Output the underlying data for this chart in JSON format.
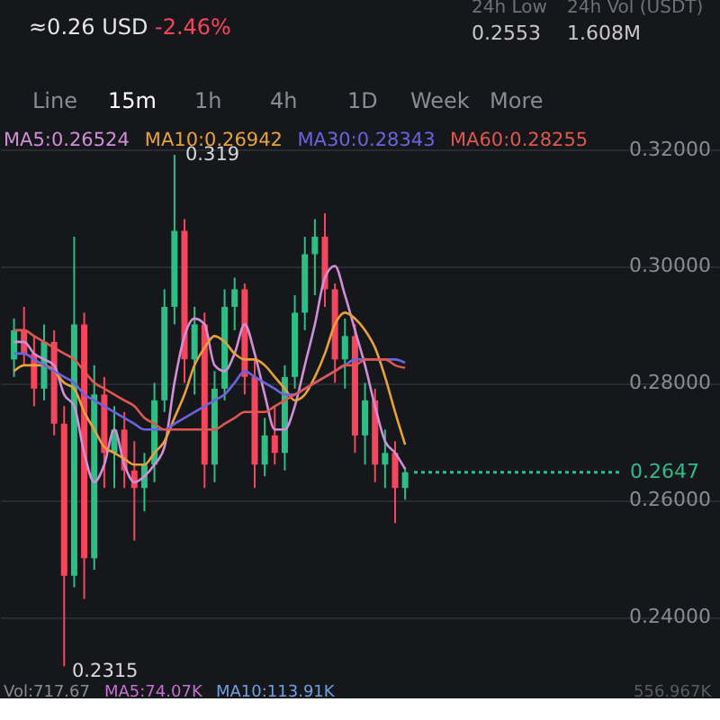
{
  "chart_data": {
    "type": "candlestick",
    "categories": [
      null,
      null,
      null,
      null,
      null,
      null,
      null,
      null,
      null,
      null,
      null,
      null,
      null,
      null,
      null,
      null,
      null,
      null,
      null,
      null,
      null,
      null,
      null,
      null,
      null,
      null,
      null,
      null,
      null,
      null,
      null,
      null,
      null,
      null,
      null,
      null,
      null,
      null,
      null,
      null,
      null,
      null,
      null,
      null,
      null,
      null,
      null,
      null,
      null,
      null,
      null,
      null,
      null,
      null,
      null,
      null,
      null,
      null,
      null,
      null,
      null,
      null,
      null,
      null,
      null,
      null,
      null,
      null,
      null,
      null
    ],
    "ohlc": [
      [
        0.284,
        0.291,
        0.281,
        0.289
      ],
      [
        0.289,
        0.293,
        0.283,
        0.285
      ],
      [
        0.285,
        0.288,
        0.276,
        0.279
      ],
      [
        0.279,
        0.29,
        0.277,
        0.287
      ],
      [
        0.287,
        0.289,
        0.271,
        0.273
      ],
      [
        0.273,
        0.276,
        0.2315,
        0.247
      ],
      [
        0.247,
        0.305,
        0.245,
        0.29
      ],
      [
        0.29,
        0.292,
        0.243,
        0.25
      ],
      [
        0.25,
        0.283,
        0.248,
        0.278
      ],
      [
        0.278,
        0.281,
        0.262,
        0.268
      ],
      [
        0.268,
        0.276,
        0.262,
        0.272
      ],
      [
        0.272,
        0.275,
        0.262,
        0.265
      ],
      [
        0.265,
        0.27,
        0.253,
        0.262
      ],
      [
        0.262,
        0.268,
        0.258,
        0.266
      ],
      [
        0.266,
        0.28,
        0.263,
        0.277
      ],
      [
        0.277,
        0.296,
        0.275,
        0.293
      ],
      [
        0.293,
        0.319,
        0.29,
        0.306
      ],
      [
        0.306,
        0.308,
        0.28,
        0.284
      ],
      [
        0.284,
        0.293,
        0.278,
        0.29
      ],
      [
        0.29,
        0.292,
        0.262,
        0.266
      ],
      [
        0.266,
        0.282,
        0.263,
        0.279
      ],
      [
        0.279,
        0.296,
        0.277,
        0.293
      ],
      [
        0.293,
        0.298,
        0.289,
        0.296
      ],
      [
        0.296,
        0.297,
        0.278,
        0.281
      ],
      [
        0.281,
        0.284,
        0.262,
        0.266
      ],
      [
        0.266,
        0.274,
        0.264,
        0.271
      ],
      [
        0.271,
        0.276,
        0.266,
        0.268
      ],
      [
        0.268,
        0.283,
        0.265,
        0.281
      ],
      [
        0.281,
        0.295,
        0.279,
        0.292
      ],
      [
        0.292,
        0.305,
        0.289,
        0.302
      ],
      [
        0.302,
        0.308,
        0.295,
        0.305
      ],
      [
        0.305,
        0.309,
        0.293,
        0.296
      ],
      [
        0.296,
        0.297,
        0.28,
        0.284
      ],
      [
        0.284,
        0.291,
        0.279,
        0.288
      ],
      [
        0.288,
        0.29,
        0.268,
        0.271
      ],
      [
        0.271,
        0.28,
        0.266,
        0.277
      ],
      [
        0.277,
        0.279,
        0.263,
        0.266
      ],
      [
        0.266,
        0.272,
        0.262,
        0.268
      ],
      [
        0.268,
        0.27,
        0.256,
        0.262
      ],
      [
        0.262,
        0.2655,
        0.26,
        0.2647
      ],
      null,
      null,
      null,
      null,
      null,
      null,
      null,
      null,
      null,
      null,
      null,
      null,
      null,
      null,
      null,
      null,
      null,
      null,
      null,
      null,
      null,
      null,
      null,
      null,
      null,
      null,
      null,
      null,
      null,
      null
    ],
    "series": [
      {
        "name": "MA5:0.26524",
        "type": "line",
        "color": "#d08fd8",
        "values": [
          0.287,
          0.287,
          0.285,
          0.284,
          0.283,
          0.278,
          0.276,
          0.268,
          0.263,
          0.266,
          0.272,
          0.266,
          0.263,
          0.264,
          0.266,
          0.269,
          0.28,
          0.288,
          0.291,
          0.29,
          0.283,
          0.282,
          0.285,
          0.29,
          0.285,
          0.278,
          0.272,
          0.272,
          0.276,
          0.283,
          0.29,
          0.298,
          0.3,
          0.295,
          0.289,
          0.283,
          0.276,
          0.27,
          0.268,
          0.26524,
          null,
          null,
          null,
          null,
          null,
          null,
          null,
          null,
          null,
          null,
          null,
          null,
          null,
          null,
          null,
          null,
          null,
          null,
          null,
          null,
          null,
          null,
          null,
          null,
          null,
          null,
          null,
          null,
          null,
          null
        ]
      },
      {
        "name": "MA10:0.26942",
        "type": "line",
        "color": "#e8a23b",
        "values": [
          0.282,
          0.283,
          0.283,
          0.283,
          0.282,
          0.28,
          0.279,
          0.275,
          0.272,
          0.269,
          0.268,
          0.267,
          0.266,
          0.266,
          0.268,
          0.27,
          0.274,
          0.278,
          0.283,
          0.286,
          0.288,
          0.287,
          0.285,
          0.284,
          0.284,
          0.283,
          0.281,
          0.279,
          0.277,
          0.278,
          0.281,
          0.285,
          0.29,
          0.292,
          0.291,
          0.289,
          0.286,
          0.281,
          0.275,
          0.26942,
          null,
          null,
          null,
          null,
          null,
          null,
          null,
          null,
          null,
          null,
          null,
          null,
          null,
          null,
          null,
          null,
          null,
          null,
          null,
          null,
          null,
          null,
          null,
          null,
          null,
          null,
          null,
          null,
          null,
          null
        ]
      },
      {
        "name": "MA30:0.28343",
        "type": "line",
        "color": "#6b63e0",
        "values": [
          0.285,
          0.285,
          0.284,
          0.283,
          0.282,
          0.281,
          0.28,
          0.278,
          0.277,
          0.276,
          0.275,
          0.274,
          0.273,
          0.272,
          0.272,
          0.272,
          0.273,
          0.274,
          0.275,
          0.276,
          0.277,
          0.278,
          0.28,
          0.282,
          0.281,
          0.28,
          0.279,
          0.278,
          0.278,
          0.279,
          0.28,
          0.281,
          0.282,
          0.283,
          0.284,
          0.284,
          0.284,
          0.284,
          0.284,
          0.28343,
          null,
          null,
          null,
          null,
          null,
          null,
          null,
          null,
          null,
          null,
          null,
          null,
          null,
          null,
          null,
          null,
          null,
          null,
          null,
          null,
          null,
          null,
          null,
          null,
          null,
          null,
          null,
          null,
          null,
          null
        ]
      },
      {
        "name": "MA60:0.28255",
        "type": "line",
        "color": "#e0574f",
        "values": [
          0.289,
          0.289,
          0.288,
          0.287,
          0.286,
          0.285,
          0.284,
          0.282,
          0.28,
          0.279,
          0.278,
          0.277,
          0.276,
          0.274,
          0.273,
          0.272,
          0.272,
          0.272,
          0.272,
          0.272,
          0.272,
          0.273,
          0.274,
          0.275,
          0.275,
          0.275,
          0.276,
          0.277,
          0.278,
          0.279,
          0.28,
          0.281,
          0.282,
          0.283,
          0.283,
          0.284,
          0.284,
          0.284,
          0.283,
          0.28255,
          null,
          null,
          null,
          null,
          null,
          null,
          null,
          null,
          null,
          null,
          null,
          null,
          null,
          null,
          null,
          null,
          null,
          null,
          null,
          null,
          null,
          null,
          null,
          null,
          null,
          null,
          null,
          null,
          null,
          null
        ]
      }
    ],
    "ylim": [
      0.226,
      0.3455
    ],
    "yticks": [
      {
        "value": 0.24,
        "label": "0.24000"
      },
      {
        "value": 0.26,
        "label": "0.26000"
      },
      {
        "value": 0.28,
        "label": "0.28000"
      },
      {
        "value": 0.3,
        "label": "0.30000"
      },
      {
        "value": 0.32,
        "label": "0.32000"
      }
    ],
    "grid": true,
    "legend": "top left",
    "tick_labels": "y",
    "ref_lines": [
      {
        "axis": "y",
        "value": 0.2647,
        "label": "0.2647",
        "color": "#2ebd85",
        "line_style": "dotted"
      }
    ],
    "annotations": [
      "≈0.26 USD",
      "-2.46%",
      "24h Low",
      "0.2553",
      "24h Vol (USDT)",
      "1.608M",
      "Line",
      "15m",
      "1h",
      "4h",
      "1D",
      "Week",
      "More",
      "Vol:717.67",
      "MA5:74.07K",
      "MA10:113.91K",
      "556.967K",
      "0.319",
      "0.2315"
    ]
  }
}
